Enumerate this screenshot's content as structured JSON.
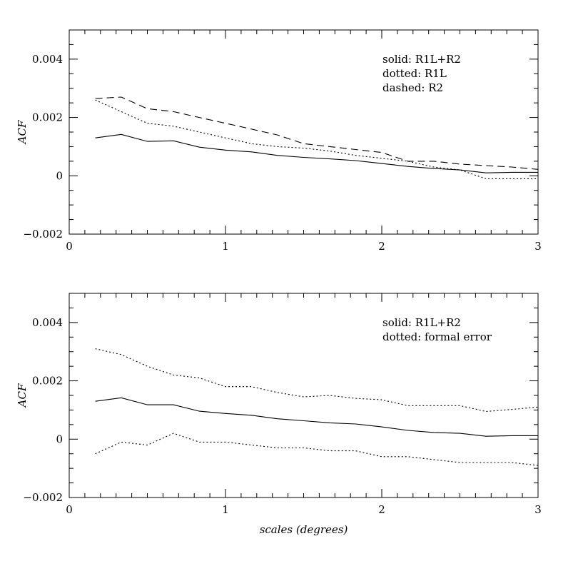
{
  "chart_data": [
    {
      "type": "line",
      "title": "",
      "xlabel": "",
      "ylabel": "ACF",
      "xlim": [
        0,
        3
      ],
      "ylim": [
        -0.002,
        0.005
      ],
      "x_ticks": [
        0,
        1,
        2,
        3
      ],
      "x_tick_labels": [
        "0",
        "1",
        "2",
        "3"
      ],
      "y_ticks": [
        -0.002,
        0,
        0.002,
        0.004
      ],
      "y_tick_labels": [
        "−0.002",
        "0",
        "0.002",
        "0.004"
      ],
      "legend": [
        "solid: R1L+R2",
        "dotted: R1L",
        "dashed: R2"
      ],
      "legend_position": "top-right",
      "series": [
        {
          "style": "solid",
          "x": [
            0.167,
            0.333,
            0.5,
            0.667,
            0.833,
            1.0,
            1.167,
            1.333,
            1.5,
            1.667,
            1.833,
            2.0,
            2.167,
            2.333,
            2.5,
            2.667,
            2.833,
            3.0
          ],
          "y": [
            0.0013,
            0.00142,
            0.00118,
            0.0012,
            0.00098,
            0.00088,
            0.00082,
            0.0007,
            0.00063,
            0.00058,
            0.00052,
            0.00042,
            0.00032,
            0.00025,
            0.0002,
            0.0001,
            0.00012,
            0.00012
          ]
        },
        {
          "style": "dotted",
          "x": [
            0.167,
            0.333,
            0.5,
            0.667,
            0.833,
            1.0,
            1.167,
            1.333,
            1.5,
            1.667,
            1.833,
            2.0,
            2.167,
            2.333,
            2.5,
            2.667,
            2.833,
            3.0
          ],
          "y": [
            0.0026,
            0.0022,
            0.0018,
            0.0017,
            0.0015,
            0.0013,
            0.0011,
            0.001,
            0.00095,
            0.00085,
            0.0007,
            0.0006,
            0.0005,
            0.0003,
            0.0002,
            -0.0001,
            -0.0001,
            -0.0001
          ]
        },
        {
          "style": "dashed",
          "x": [
            0.167,
            0.333,
            0.5,
            0.667,
            0.833,
            1.0,
            1.167,
            1.333,
            1.5,
            1.667,
            1.833,
            2.0,
            2.167,
            2.333,
            2.5,
            2.667,
            2.833,
            3.0
          ],
          "y": [
            0.00265,
            0.0027,
            0.0023,
            0.0022,
            0.002,
            0.0018,
            0.0016,
            0.0014,
            0.0011,
            0.001,
            0.0009,
            0.0008,
            0.0005,
            0.0005,
            0.0004,
            0.00035,
            0.0003,
            0.00022
          ]
        }
      ]
    },
    {
      "type": "line",
      "title": "",
      "xlabel": "scales (degrees)",
      "ylabel": "ACF",
      "xlim": [
        0,
        3
      ],
      "ylim": [
        -0.002,
        0.005
      ],
      "x_ticks": [
        0,
        1,
        2,
        3
      ],
      "x_tick_labels": [
        "0",
        "1",
        "2",
        "3"
      ],
      "y_ticks": [
        -0.002,
        0,
        0.002,
        0.004
      ],
      "y_tick_labels": [
        "−0.002",
        "0",
        "0.002",
        "0.004"
      ],
      "legend": [
        "solid: R1L+R2",
        "dotted: formal error"
      ],
      "legend_position": "top-right",
      "series": [
        {
          "style": "solid",
          "x": [
            0.167,
            0.333,
            0.5,
            0.667,
            0.833,
            1.0,
            1.167,
            1.333,
            1.5,
            1.667,
            1.833,
            2.0,
            2.167,
            2.333,
            2.5,
            2.667,
            2.833,
            3.0
          ],
          "y": [
            0.0013,
            0.00142,
            0.00118,
            0.00118,
            0.00096,
            0.00088,
            0.00082,
            0.0007,
            0.00063,
            0.00056,
            0.00052,
            0.00042,
            0.0003,
            0.00023,
            0.0002,
            0.0001,
            0.00012,
            0.00012
          ]
        },
        {
          "style": "dotted",
          "x": [
            0.167,
            0.333,
            0.5,
            0.667,
            0.833,
            1.0,
            1.167,
            1.333,
            1.5,
            1.667,
            1.833,
            2.0,
            2.167,
            2.333,
            2.5,
            2.667,
            2.833,
            3.0
          ],
          "y": [
            0.0031,
            0.0029,
            0.0025,
            0.0022,
            0.0021,
            0.0018,
            0.0018,
            0.0016,
            0.00145,
            0.0015,
            0.0014,
            0.00135,
            0.00115,
            0.00115,
            0.00115,
            0.00095,
            0.00102,
            0.0011
          ]
        },
        {
          "style": "dotted",
          "x": [
            0.167,
            0.333,
            0.5,
            0.667,
            0.833,
            1.0,
            1.167,
            1.333,
            1.5,
            1.667,
            1.833,
            2.0,
            2.167,
            2.333,
            2.5,
            2.667,
            2.833,
            3.0
          ],
          "y": [
            -0.0005,
            -0.0001,
            -0.0002,
            0.0002,
            -0.0001,
            -0.0001,
            -0.0002,
            -0.0003,
            -0.0003,
            -0.0004,
            -0.0004,
            -0.0006,
            -0.0006,
            -0.0007,
            -0.0008,
            -0.0008,
            -0.0008,
            -0.0009
          ]
        }
      ]
    }
  ]
}
